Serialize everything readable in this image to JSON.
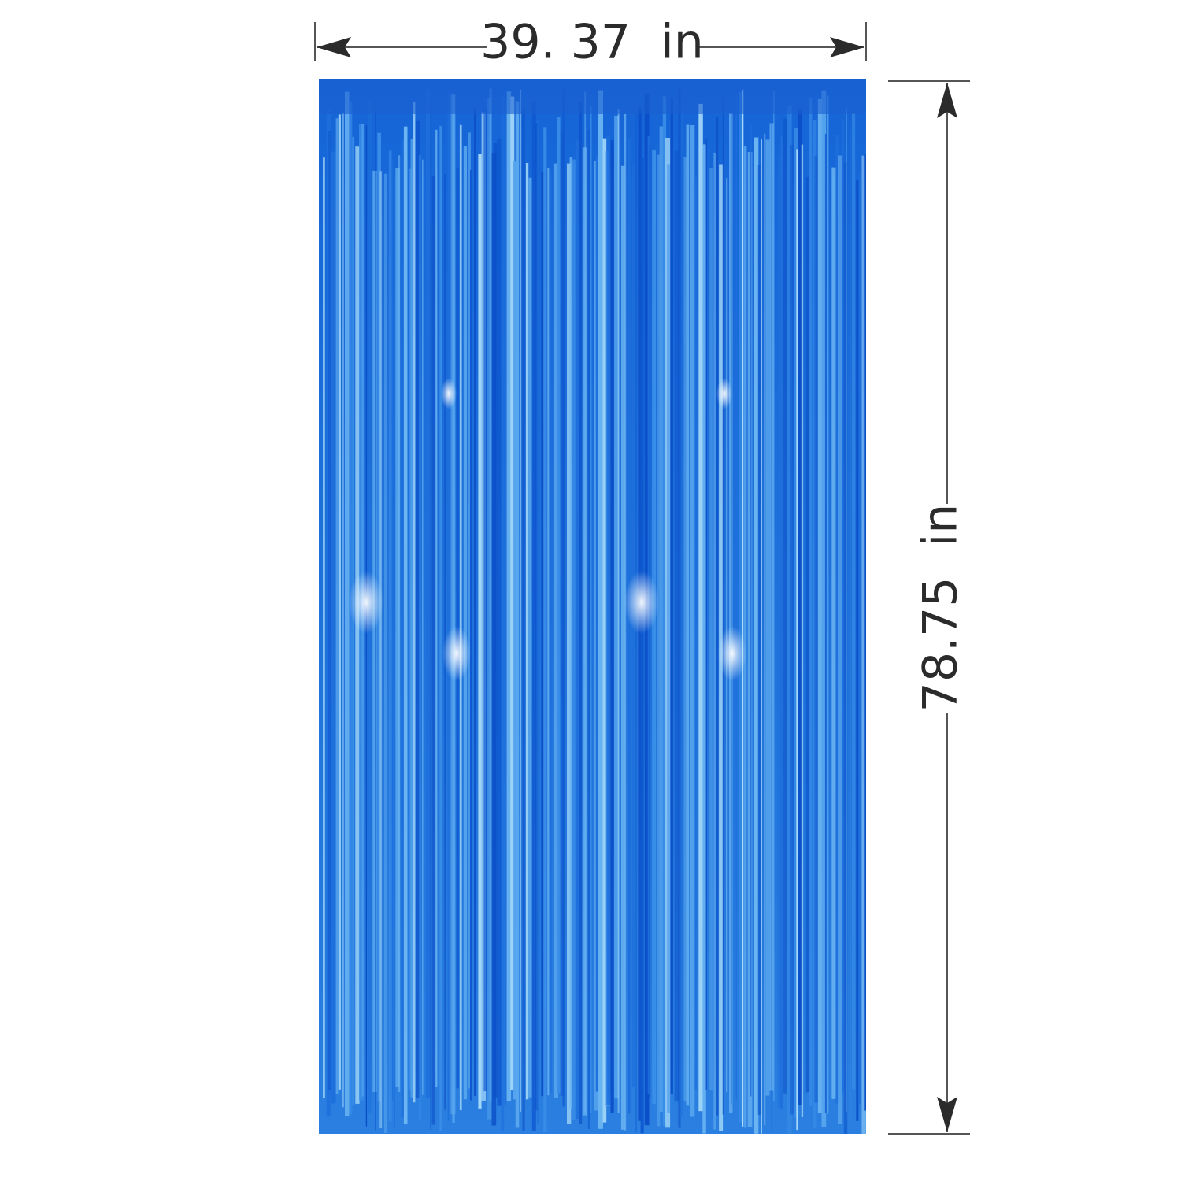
{
  "width_label": "39. 37  in",
  "height_label": "78.75  in"
}
